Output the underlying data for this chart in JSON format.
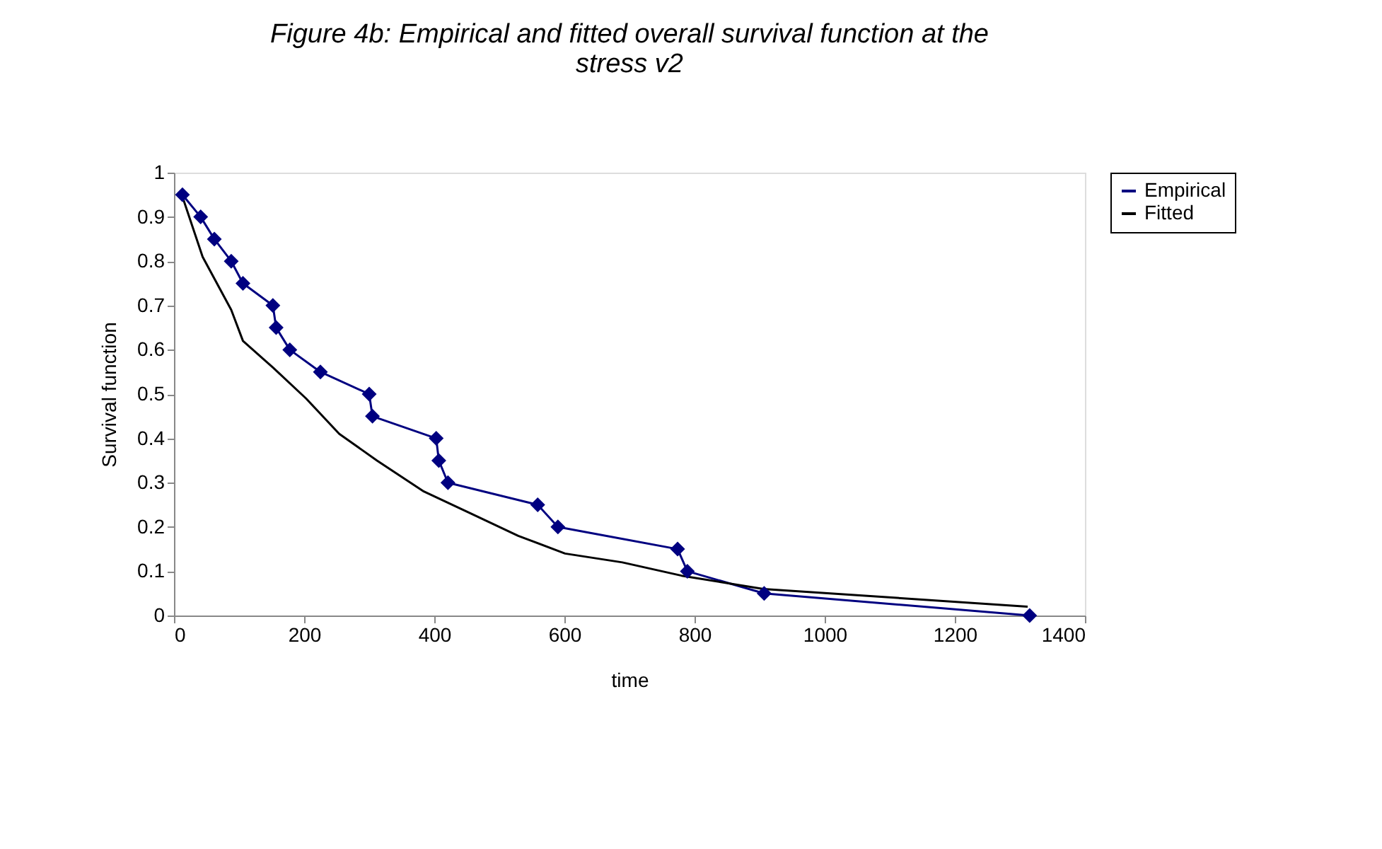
{
  "chart_data": {
    "type": "line",
    "title": "Figure 4b: Empirical and fitted overall survival function at the stress v2",
    "xlabel": "time",
    "ylabel": "Survival function",
    "xlim": [
      0,
      1400
    ],
    "xticks": [
      0,
      200,
      400,
      600,
      800,
      1000,
      1200,
      1400
    ],
    "ylim": [
      0,
      1
    ],
    "yticks": [
      0,
      0.1,
      0.2,
      0.3,
      0.4,
      0.5,
      0.6,
      0.7,
      0.8,
      0.9,
      1
    ],
    "grid": false,
    "legend": "right",
    "series": [
      {
        "name": "Empirical",
        "color": "#000080",
        "marker": "diamond",
        "x": [
          13,
          41,
          62,
          88,
          106,
          152,
          157,
          178,
          225,
          300,
          305,
          403,
          407,
          421,
          559,
          590,
          774,
          789,
          907,
          1315
        ],
        "values": [
          0.95,
          0.9,
          0.85,
          0.8,
          0.75,
          0.7,
          0.65,
          0.6,
          0.55,
          0.5,
          0.45,
          0.4,
          0.35,
          0.3,
          0.25,
          0.2,
          0.15,
          0.1,
          0.05,
          0
        ]
      },
      {
        "name": "Fitted",
        "color": "#000000",
        "marker": "none",
        "x": [
          12,
          44,
          88,
          106,
          152,
          203,
          254,
          312,
          384,
          457,
          529,
          601,
          689,
          780,
          906,
          1312
        ],
        "values": [
          0.95,
          0.81,
          0.69,
          0.62,
          0.56,
          0.49,
          0.41,
          0.35,
          0.28,
          0.23,
          0.18,
          0.14,
          0.12,
          0.09,
          0.06,
          0.02
        ]
      }
    ]
  }
}
